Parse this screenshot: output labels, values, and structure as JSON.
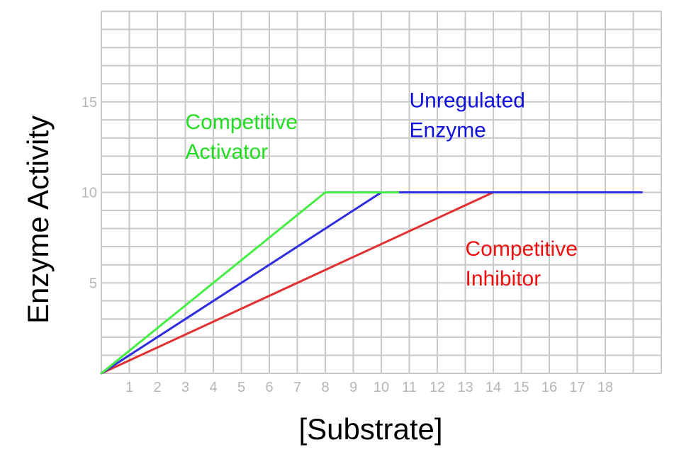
{
  "chart_data": {
    "type": "line",
    "xlabel": "[Substrate]",
    "ylabel": "Enzyme Activity",
    "xlim": [
      0,
      20
    ],
    "ylim": [
      0,
      20
    ],
    "x_ticks": [
      1,
      2,
      3,
      4,
      5,
      6,
      7,
      8,
      9,
      10,
      11,
      12,
      13,
      14,
      15,
      16,
      17,
      18
    ],
    "y_ticks": [
      5,
      10,
      15
    ],
    "grid": true,
    "series": [
      {
        "name": "Competitive Activator",
        "color": "#44ee44",
        "points": [
          [
            0,
            0
          ],
          [
            8,
            10
          ],
          [
            10.6,
            10
          ]
        ]
      },
      {
        "name": "Unregulated Enzyme",
        "color": "#2e2ee0",
        "points": [
          [
            0,
            0
          ],
          [
            10,
            10
          ],
          [
            19.3,
            10
          ]
        ]
      },
      {
        "name": "Competitive Inhibitor",
        "color": "#e23030",
        "points": [
          [
            0,
            0
          ],
          [
            14,
            10
          ],
          [
            18,
            10
          ]
        ]
      }
    ],
    "annotations": [
      {
        "lines": [
          "Competitive",
          "Activator"
        ],
        "color": "#22dd22",
        "at": [
          3,
          13.5
        ]
      },
      {
        "lines": [
          "Unregulated",
          "Enzyme"
        ],
        "color": "#1111dd",
        "at": [
          11,
          14.7
        ]
      },
      {
        "lines": [
          "Competitive",
          "Inhibitor"
        ],
        "color": "#ee1111",
        "at": [
          13,
          6.5
        ]
      }
    ]
  }
}
